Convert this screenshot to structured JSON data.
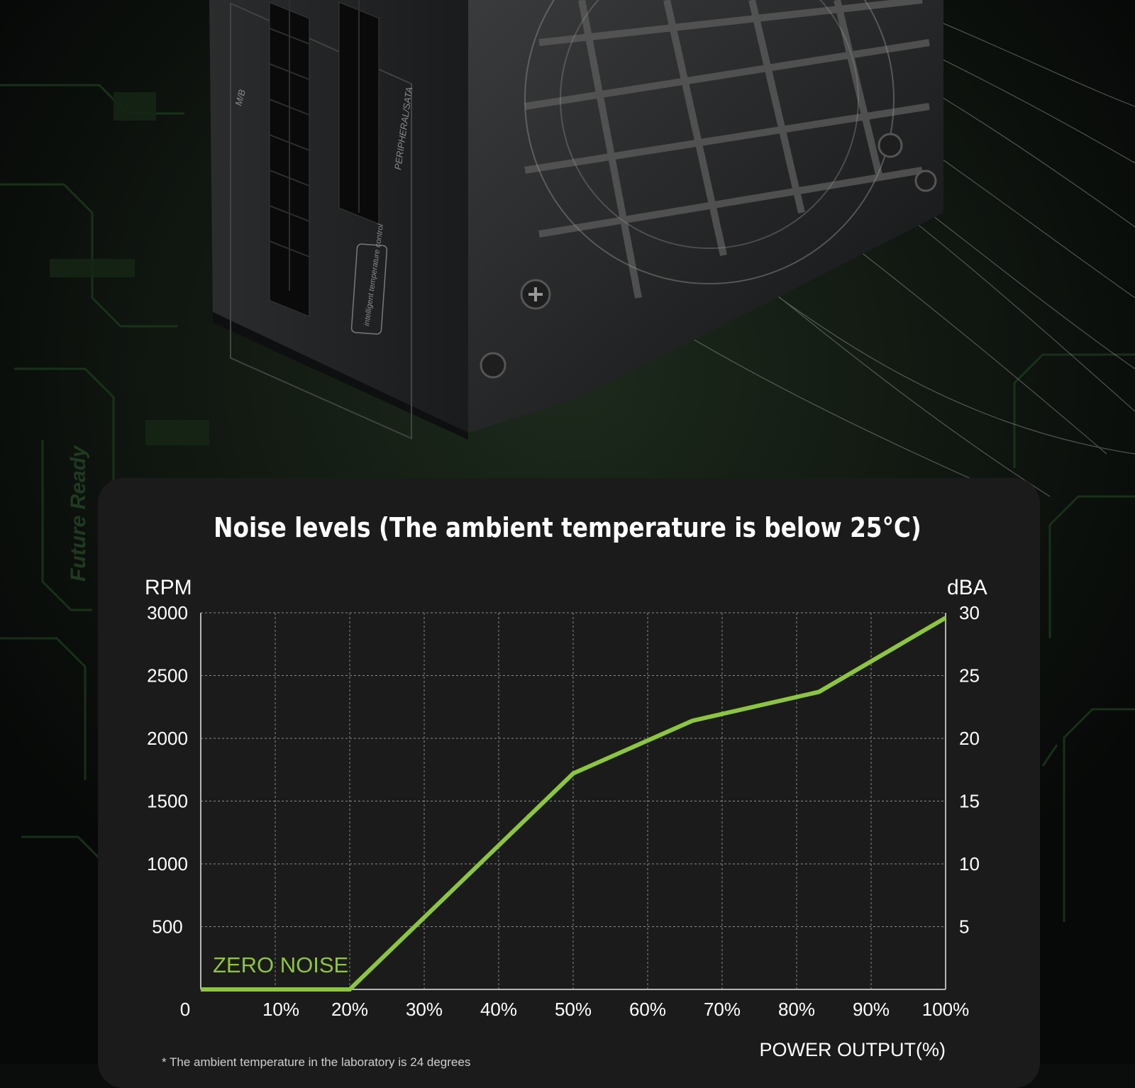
{
  "footnote": "* The ambient temperature in the laboratory is 24 degrees",
  "colors": {
    "background": "#0b0d0c",
    "card": "#1b1b1b",
    "accent": "#8cc63f",
    "grid": "#8a8a8a"
  },
  "product": {
    "labels": [
      "M/B",
      "PERIPHERAL/SATA",
      "intelligent temperature control",
      "Future Ready"
    ]
  },
  "chart_data": {
    "type": "line",
    "title": "Noise levels (The ambient temperature is below 25°C)",
    "xlabel": "POWER OUTPUT(%)",
    "ylabel_left": "RPM",
    "ylabel_right": "dBA",
    "origin_label": "0",
    "xlim": [
      0,
      100
    ],
    "ylim_left": [
      0,
      3000
    ],
    "ylim_right": [
      0,
      30
    ],
    "x_ticks": [
      10,
      20,
      30,
      40,
      50,
      60,
      70,
      80,
      90,
      100
    ],
    "x_tick_labels": [
      "10%",
      "20%",
      "30%",
      "40%",
      "50%",
      "60%",
      "70%",
      "80%",
      "90%",
      "100%"
    ],
    "y_ticks_left": [
      500,
      1000,
      1500,
      2000,
      2500,
      3000
    ],
    "y_tick_labels_left": [
      "500",
      "1000",
      "1500",
      "2000",
      "2500",
      "3000"
    ],
    "y_ticks_right": [
      5,
      10,
      15,
      20,
      25,
      30
    ],
    "y_tick_labels_right": [
      "5",
      "10",
      "15",
      "20",
      "25",
      "30"
    ],
    "grid": true,
    "annotation": "ZERO NOISE",
    "series": [
      {
        "x": [
          0,
          20,
          50,
          66,
          83,
          100
        ],
        "y": [
          0,
          0,
          1720,
          2140,
          2370,
          2960
        ]
      }
    ]
  }
}
